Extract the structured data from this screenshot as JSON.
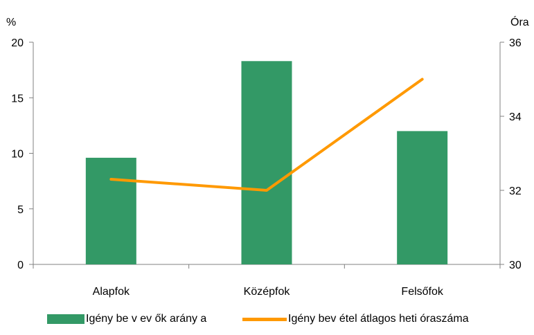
{
  "chart_data": {
    "type": "bar+line",
    "categories": [
      "Alapfok",
      "Középfok",
      "Felsőfok"
    ],
    "series": [
      {
        "name": "Igény be v ev ők arány a",
        "type": "bar",
        "axis": "left",
        "values": [
          9.6,
          18.3,
          12.0
        ],
        "color": "#339966"
      },
      {
        "name": "Igény bev étel átlagos heti óraszáma",
        "type": "line",
        "axis": "right",
        "values": [
          32.3,
          32.0,
          35.0
        ],
        "color": "#FF9900"
      }
    ],
    "left_axis": {
      "label": "%",
      "min": 0,
      "max": 20,
      "ticks": [
        0,
        5,
        10,
        15,
        20
      ]
    },
    "right_axis": {
      "label": "Óra",
      "min": 30,
      "max": 36,
      "ticks": [
        30,
        32,
        34,
        36
      ]
    },
    "grid": false,
    "legend_position": "bottom"
  }
}
